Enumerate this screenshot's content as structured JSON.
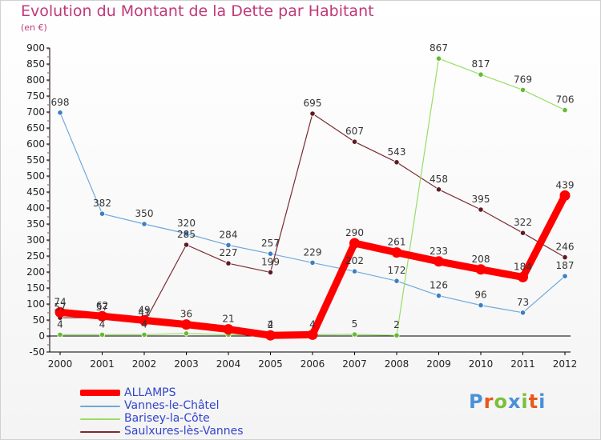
{
  "header": {
    "title": "Evolution du Montant de la Dette par Habitant",
    "subtitle": "(en €)"
  },
  "logo": {
    "text": "Proxiti",
    "colors": [
      "#4a90d9",
      "#e8581c",
      "#7bbf3a",
      "#4a90d9",
      "#7bbf3a",
      "#e8581c",
      "#4a90d9"
    ]
  },
  "chart_data": {
    "type": "line",
    "title": "Evolution du Montant de la Dette par Habitant",
    "subtitle": "(en €)",
    "ylim": [
      -50,
      900
    ],
    "yticks": [
      -50,
      0,
      50,
      100,
      150,
      200,
      250,
      300,
      350,
      400,
      450,
      500,
      550,
      600,
      650,
      700,
      750,
      800,
      850,
      900
    ],
    "categories": [
      "2000",
      "2001",
      "2002",
      "2003",
      "2004",
      "2005",
      "2006",
      "2007",
      "2008",
      "2009",
      "2010",
      "2011",
      "2012"
    ],
    "grid": false,
    "legend_position": "bottom-left",
    "series": [
      {
        "name": "Vannes-le-Châtel",
        "color": "#6fa8dc",
        "point_color": "#3d7fc1",
        "stroke": 1.2,
        "values": [
          698,
          382,
          350,
          320,
          284,
          257,
          229,
          202,
          172,
          126,
          96,
          73,
          187
        ],
        "labels": [
          "698",
          "382",
          "350",
          "320",
          "284",
          "257",
          "229",
          "202",
          "172",
          "126",
          "96",
          "73",
          "187"
        ]
      },
      {
        "name": "Saulxures-lès-Vannes",
        "color": "#7a2b32",
        "point_color": "#5e1a22",
        "stroke": 1.2,
        "values": [
          57,
          57,
          41,
          285,
          227,
          199,
          695,
          607,
          543,
          458,
          395,
          322,
          246
        ],
        "labels": [
          "57",
          "57",
          "41",
          "285",
          "227",
          "199",
          "695",
          "607",
          "543",
          "458",
          "395",
          "322",
          "246"
        ]
      },
      {
        "name": "Barisey-la-Côte",
        "color": "#99dd66",
        "point_color": "#66bb33",
        "stroke": 1.2,
        "values": [
          4,
          4,
          4,
          8,
          4,
          4,
          4,
          5,
          2,
          867,
          817,
          769,
          706
        ],
        "labels": [
          "4",
          "4",
          "4",
          "",
          "",
          "4",
          "4",
          "5",
          "2",
          "867",
          "817",
          "769",
          "706"
        ]
      },
      {
        "name": "ALLAMPS",
        "color": "#ff0000",
        "point_color": "#ff0000",
        "stroke": 9,
        "values": [
          74,
          62,
          49,
          36,
          21,
          2,
          4,
          290,
          261,
          233,
          208,
          184,
          439
        ],
        "labels": [
          "74",
          "62",
          "49",
          "36",
          "21",
          "2",
          "",
          "290",
          "261",
          "233",
          "208",
          "184",
          "439"
        ]
      }
    ]
  },
  "legend": {
    "items": [
      {
        "label": "ALLAMPS",
        "color": "#ff0000",
        "thickness": 8
      },
      {
        "label": "Vannes-le-Châtel",
        "color": "#6fa8dc",
        "thickness": 2
      },
      {
        "label": "Barisey-la-Côte",
        "color": "#99dd66",
        "thickness": 2
      },
      {
        "label": "Saulxures-lès-Vannes",
        "color": "#7a2b32",
        "thickness": 2
      }
    ]
  }
}
